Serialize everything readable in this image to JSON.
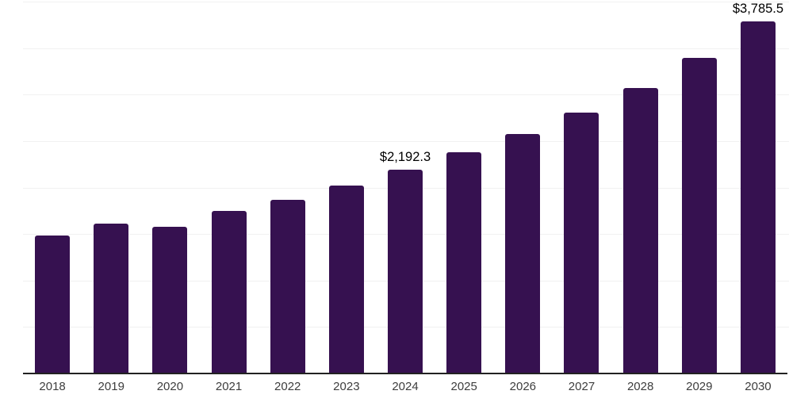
{
  "chart_data": {
    "type": "bar",
    "title": "",
    "xlabel": "",
    "ylabel": "",
    "categories": [
      "2018",
      "2019",
      "2020",
      "2021",
      "2022",
      "2023",
      "2024",
      "2025",
      "2026",
      "2027",
      "2028",
      "2029",
      "2030"
    ],
    "values": [
      1487,
      1615,
      1580,
      1745,
      1869,
      2022,
      2192.3,
      2379,
      2575,
      2804,
      3067,
      3399,
      3785.5
    ],
    "annotations": [
      {
        "category": "2024",
        "text": "$2,192.3"
      },
      {
        "category": "2030",
        "text": "$3,785.5"
      }
    ],
    "ylim": [
      0,
      4000
    ],
    "gridline_step": 500,
    "grid": true,
    "y_tick_labels_shown": false,
    "legend_position": "none",
    "colors": {
      "bar": "#361150",
      "axis_line": "#222222",
      "gridline": "#f1f1f1",
      "tick_label": "#3d3d3d",
      "annotation_text": "#000000",
      "background": "#ffffff"
    }
  }
}
